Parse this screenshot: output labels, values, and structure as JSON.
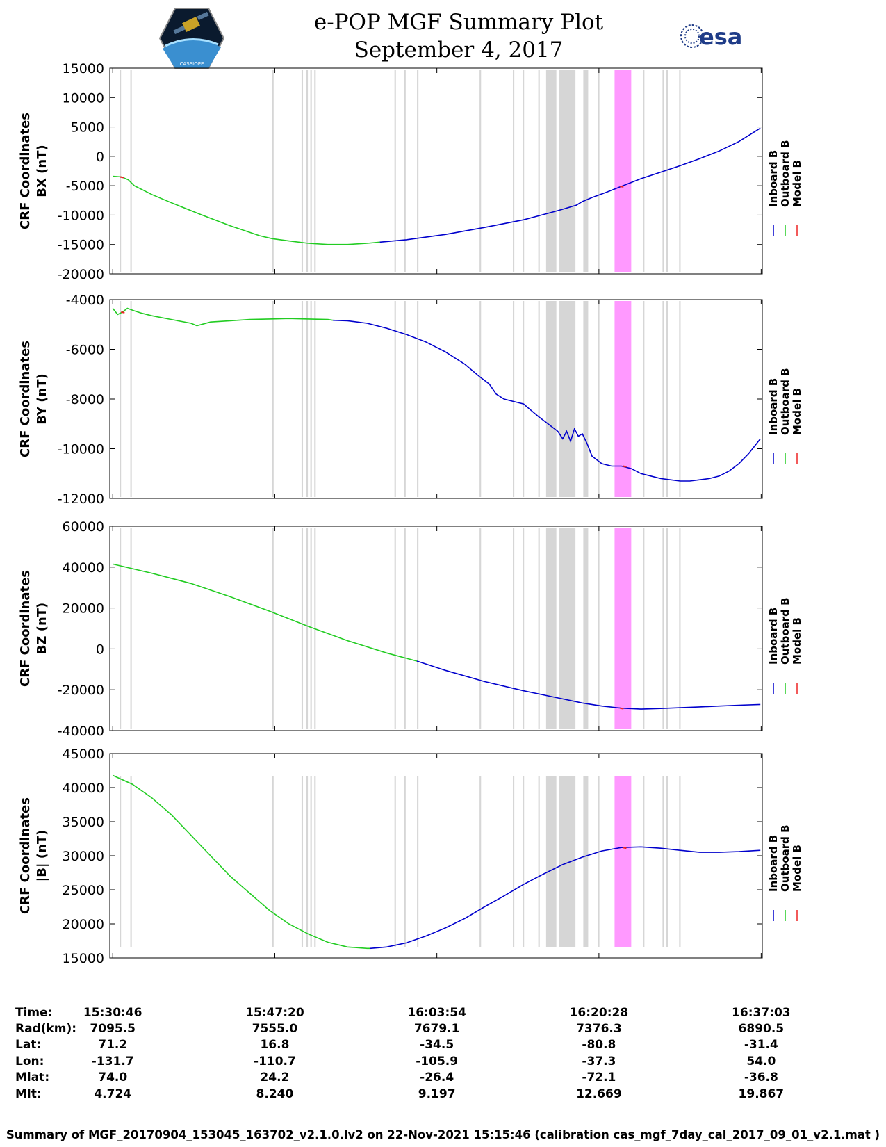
{
  "header": {
    "title_line1": "e-POP MGF Summary Plot",
    "title_line2": "September 4, 2017",
    "logo_left_text": "CASSIOPE",
    "logo_right_text": "esa"
  },
  "colors": {
    "inboard": "#0000cc",
    "outboard": "#22cc22",
    "model": "#ee2222",
    "gap_band": "#d6d6d6",
    "highlight_band": "#ff99ff"
  },
  "legend": {
    "inboard": "Inboard B",
    "outboard": "Outboard B",
    "model": "Model B"
  },
  "chart_data": {
    "type": "line",
    "x_unit": "minutes since 15:30:46",
    "x_range": [
      -0.3,
      66.4
    ],
    "x_ticks": [
      0,
      16.567,
      33.133,
      49.7,
      66.283
    ],
    "x_tick_labels": [
      "15:30:46",
      "15:47:20",
      "16:03:54",
      "16:20:28",
      "16:37:03"
    ],
    "gaps": [
      [
        0.7,
        0.85
      ],
      [
        1.8,
        1.95
      ],
      [
        16.3,
        16.45
      ],
      [
        19.3,
        19.45
      ],
      [
        19.8,
        19.95
      ],
      [
        20.2,
        20.35
      ],
      [
        20.6,
        20.75
      ],
      [
        28.8,
        28.95
      ],
      [
        29.8,
        29.95
      ],
      [
        31.1,
        31.25
      ],
      [
        37.5,
        37.65
      ],
      [
        40.9,
        41.05
      ],
      [
        41.9,
        42.05
      ],
      [
        43.5,
        43.65
      ],
      [
        44.3,
        45.35
      ],
      [
        45.6,
        47.3
      ],
      [
        48.1,
        48.6
      ],
      [
        49.6,
        49.75
      ],
      [
        54.2,
        54.35
      ],
      [
        56.2,
        56.35
      ],
      [
        56.6,
        56.75
      ],
      [
        57.9,
        58.05
      ]
    ],
    "highlight": [
      51.3,
      53.0
    ],
    "panels": [
      {
        "ylabel_1": "CRF Coordinates",
        "ylabel_2": "BX (nT)",
        "ylim": [
          -20000,
          15000
        ],
        "yticks": [
          15000,
          10000,
          5000,
          0,
          -5000,
          -10000,
          -15000,
          -20000
        ],
        "outboard": [
          [
            0,
            -3400
          ],
          [
            0.9,
            -3500
          ],
          [
            1.6,
            -4000
          ],
          [
            2.2,
            -5000
          ],
          [
            4,
            -6500
          ],
          [
            6,
            -7900
          ],
          [
            9,
            -9900
          ],
          [
            12,
            -11800
          ],
          [
            15,
            -13500
          ],
          [
            16.3,
            -14000
          ],
          [
            18,
            -14400
          ],
          [
            20,
            -14800
          ],
          [
            22,
            -15000
          ],
          [
            24,
            -15000
          ],
          [
            26,
            -14800
          ],
          [
            27.3,
            -14600
          ]
        ],
        "inboard": [
          [
            27.3,
            -14600
          ],
          [
            30,
            -14200
          ],
          [
            34,
            -13300
          ],
          [
            38,
            -12100
          ],
          [
            42,
            -10800
          ],
          [
            44.5,
            -9700
          ],
          [
            46,
            -9000
          ],
          [
            47.4,
            -8300
          ],
          [
            48,
            -7700
          ],
          [
            49,
            -7000
          ],
          [
            50.5,
            -6100
          ],
          [
            52,
            -5100
          ],
          [
            54,
            -3800
          ],
          [
            56,
            -2700
          ],
          [
            58,
            -1600
          ],
          [
            60,
            -400
          ],
          [
            62,
            900
          ],
          [
            64,
            2500
          ],
          [
            66.2,
            4800
          ]
        ],
        "model_marks": [
          [
            0.9,
            -3500
          ],
          [
            52,
            -5100
          ]
        ]
      },
      {
        "ylabel_1": "CRF Coordinates",
        "ylabel_2": "BY (nT)",
        "ylim": [
          -12000,
          -4000
        ],
        "yticks": [
          -4000,
          -6000,
          -8000,
          -10000,
          -12000
        ],
        "outboard": [
          [
            0,
            -4350
          ],
          [
            0.5,
            -4600
          ],
          [
            1,
            -4500
          ],
          [
            1.5,
            -4350
          ],
          [
            2.2,
            -4450
          ],
          [
            3,
            -4550
          ],
          [
            4,
            -4650
          ],
          [
            6,
            -4800
          ],
          [
            8,
            -4950
          ],
          [
            8.6,
            -5050
          ],
          [
            10,
            -4900
          ],
          [
            12,
            -4850
          ],
          [
            14,
            -4800
          ],
          [
            16,
            -4780
          ],
          [
            18,
            -4760
          ],
          [
            20,
            -4780
          ],
          [
            22,
            -4800
          ],
          [
            22.5,
            -4830
          ]
        ],
        "inboard": [
          [
            22.5,
            -4830
          ],
          [
            24,
            -4850
          ],
          [
            26,
            -4950
          ],
          [
            28,
            -5150
          ],
          [
            30,
            -5400
          ],
          [
            32,
            -5700
          ],
          [
            34,
            -6100
          ],
          [
            36,
            -6600
          ],
          [
            37.5,
            -7100
          ],
          [
            38.5,
            -7400
          ],
          [
            39.2,
            -7800
          ],
          [
            40,
            -8000
          ],
          [
            41,
            -8100
          ],
          [
            42,
            -8200
          ],
          [
            42.6,
            -8400
          ],
          [
            43.5,
            -8700
          ],
          [
            44.5,
            -9000
          ],
          [
            45.5,
            -9300
          ],
          [
            46,
            -9600
          ],
          [
            46.4,
            -9300
          ],
          [
            46.8,
            -9700
          ],
          [
            47.2,
            -9200
          ],
          [
            47.6,
            -9500
          ],
          [
            48,
            -9400
          ],
          [
            48.5,
            -9800
          ],
          [
            49,
            -10300
          ],
          [
            50,
            -10600
          ],
          [
            51,
            -10700
          ],
          [
            52,
            -10700
          ],
          [
            53,
            -10800
          ],
          [
            54,
            -11000
          ],
          [
            55,
            -11100
          ],
          [
            56,
            -11200
          ],
          [
            57,
            -11250
          ],
          [
            58,
            -11300
          ],
          [
            59,
            -11300
          ],
          [
            60,
            -11250
          ],
          [
            61,
            -11200
          ],
          [
            62,
            -11100
          ],
          [
            63,
            -10900
          ],
          [
            64,
            -10600
          ],
          [
            65,
            -10200
          ],
          [
            66.2,
            -9600
          ]
        ],
        "model_marks": [
          [
            1,
            -4500
          ],
          [
            52.3,
            -10700
          ]
        ]
      },
      {
        "ylabel_1": "CRF Coordinates",
        "ylabel_2": "BZ (nT)",
        "ylim": [
          -40000,
          60000
        ],
        "yticks": [
          60000,
          40000,
          20000,
          0,
          -20000,
          -40000
        ],
        "outboard": [
          [
            0,
            41500
          ],
          [
            4,
            37000
          ],
          [
            8,
            32000
          ],
          [
            12,
            25500
          ],
          [
            16,
            18500
          ],
          [
            20,
            11000
          ],
          [
            24,
            4000
          ],
          [
            28,
            -2000
          ],
          [
            31.1,
            -6000
          ]
        ],
        "inboard": [
          [
            31.1,
            -6000
          ],
          [
            34,
            -10500
          ],
          [
            38,
            -16000
          ],
          [
            42,
            -20500
          ],
          [
            46,
            -24500
          ],
          [
            48,
            -26500
          ],
          [
            50,
            -28000
          ],
          [
            52,
            -29000
          ],
          [
            54,
            -29500
          ],
          [
            56,
            -29200
          ],
          [
            58,
            -28800
          ],
          [
            60,
            -28400
          ],
          [
            62,
            -28000
          ],
          [
            64,
            -27600
          ],
          [
            66.2,
            -27200
          ]
        ],
        "model_marks": [
          [
            52,
            -29000
          ]
        ]
      },
      {
        "ylabel_1": "CRF Coordinates",
        "ylabel_2": "|B| (nT)",
        "ylim": [
          15000,
          45000
        ],
        "yticks": [
          45000,
          40000,
          35000,
          30000,
          25000,
          20000,
          15000
        ],
        "outboard": [
          [
            0,
            41800
          ],
          [
            2,
            40500
          ],
          [
            4,
            38500
          ],
          [
            6,
            36000
          ],
          [
            8,
            33000
          ],
          [
            10,
            30000
          ],
          [
            12,
            27000
          ],
          [
            14,
            24500
          ],
          [
            16,
            22000
          ],
          [
            18,
            20000
          ],
          [
            20,
            18500
          ],
          [
            22,
            17300
          ],
          [
            24,
            16600
          ],
          [
            26,
            16400
          ],
          [
            26.3,
            16400
          ]
        ],
        "inboard": [
          [
            26.3,
            16400
          ],
          [
            28,
            16600
          ],
          [
            30,
            17200
          ],
          [
            32,
            18200
          ],
          [
            34,
            19400
          ],
          [
            36,
            20800
          ],
          [
            38,
            22500
          ],
          [
            40,
            24100
          ],
          [
            42,
            25800
          ],
          [
            44,
            27300
          ],
          [
            46,
            28700
          ],
          [
            48,
            29800
          ],
          [
            50,
            30700
          ],
          [
            52,
            31200
          ],
          [
            54,
            31300
          ],
          [
            56,
            31100
          ],
          [
            58,
            30800
          ],
          [
            60,
            30500
          ],
          [
            62,
            30500
          ],
          [
            64,
            30600
          ],
          [
            66.2,
            30800
          ]
        ],
        "model_marks": [
          [
            52.3,
            31200
          ]
        ]
      }
    ]
  },
  "orbit_table": {
    "rows": [
      {
        "label": "Time:",
        "values": [
          "15:30:46",
          "15:47:20",
          "16:03:54",
          "16:20:28",
          "16:37:03"
        ]
      },
      {
        "label": "Rad(km):",
        "values": [
          "7095.5",
          "7555.0",
          "7679.1",
          "7376.3",
          "6890.5"
        ]
      },
      {
        "label": "Lat:",
        "values": [
          "71.2",
          "16.8",
          "-34.5",
          "-80.8",
          "-31.4"
        ]
      },
      {
        "label": "Lon:",
        "values": [
          "-131.7",
          "-110.7",
          "-105.9",
          "-37.3",
          "54.0"
        ]
      },
      {
        "label": "Mlat:",
        "values": [
          "74.0",
          "24.2",
          "-26.4",
          "-72.1",
          "-36.8"
        ]
      },
      {
        "label": "Mlt:",
        "values": [
          "4.724",
          "8.240",
          "9.197",
          "12.669",
          "19.867"
        ]
      }
    ]
  },
  "footer": "Summary of MGF_20170904_153045_163702_v2.1.0.lv2 on 22-Nov-2021 15:15:46 (calibration cas_mgf_7day_cal_2017_09_01_v2.1.mat )"
}
